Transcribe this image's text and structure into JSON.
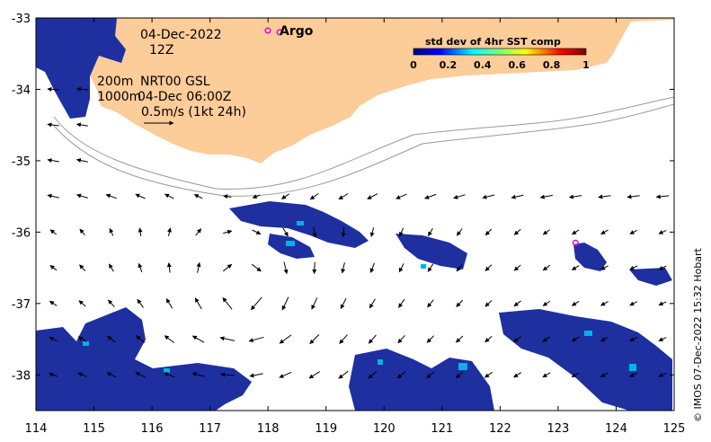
{
  "map": {
    "date": "04-Dec-2022",
    "hour": "12Z",
    "depth_shallow": "200m",
    "depth_deep": "1000m",
    "product": "NRT00 GSL",
    "product_time": "04-Dec 06:00Z",
    "scale_arrow_label": "0.5m/s (1kt 24h)",
    "argo_label": "Argo",
    "credit": "© IMOS 07-Dec-2022 15:32 Hobart",
    "lon_range": [
      114,
      125
    ],
    "lat_range": [
      -38.5,
      -33
    ],
    "x_ticks": [
      "114",
      "115",
      "116",
      "117",
      "118",
      "119",
      "120",
      "121",
      "122",
      "123",
      "124",
      "125"
    ],
    "y_ticks": [
      "-33",
      "-34",
      "-35",
      "-36",
      "-37",
      "-38"
    ],
    "argo_floats": [
      {
        "lon": 118.2,
        "lat": -33.2
      },
      {
        "lon": 123.3,
        "lat": -36.15
      }
    ],
    "colors": {
      "land": "#fccc99",
      "sst_low": "#1e2fa0",
      "sst_mid": "#00b4e6",
      "argo": "#e000e0",
      "isobath": "#9a9a9a"
    }
  },
  "colorbar": {
    "title": "std dev of 4hr SST comp",
    "ticks": [
      "0",
      "0.2",
      "0.4",
      "0.6",
      "0.8",
      "1"
    ]
  }
}
